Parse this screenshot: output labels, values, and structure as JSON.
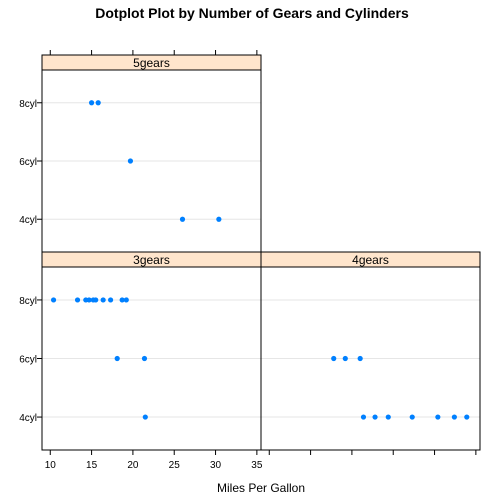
{
  "chart_data": {
    "type": "scatter",
    "title": "Dotplot Plot by Number of Gears and Cylinders",
    "xlabel": "Miles Per Gallon",
    "ylabel": "",
    "xlim": [
      9,
      35.5
    ],
    "x_ticks": [
      10,
      15,
      20,
      25,
      30,
      35
    ],
    "categories": [
      "4cyl",
      "6cyl",
      "8cyl"
    ],
    "point_color": "#0080ff",
    "strip_color": "#ffe5cc",
    "panels": [
      {
        "name": "5gears",
        "points": [
          {
            "cyl": "8cyl",
            "mpg": 15.0
          },
          {
            "cyl": "8cyl",
            "mpg": 15.8
          },
          {
            "cyl": "6cyl",
            "mpg": 19.7
          },
          {
            "cyl": "4cyl",
            "mpg": 26.0
          },
          {
            "cyl": "4cyl",
            "mpg": 30.4
          }
        ]
      },
      {
        "name": "3gears",
        "points": [
          {
            "cyl": "8cyl",
            "mpg": 10.4
          },
          {
            "cyl": "8cyl",
            "mpg": 13.3
          },
          {
            "cyl": "8cyl",
            "mpg": 14.3
          },
          {
            "cyl": "8cyl",
            "mpg": 14.7
          },
          {
            "cyl": "8cyl",
            "mpg": 15.2
          },
          {
            "cyl": "8cyl",
            "mpg": 15.5
          },
          {
            "cyl": "8cyl",
            "mpg": 16.4
          },
          {
            "cyl": "8cyl",
            "mpg": 17.3
          },
          {
            "cyl": "8cyl",
            "mpg": 18.7
          },
          {
            "cyl": "8cyl",
            "mpg": 19.2
          },
          {
            "cyl": "6cyl",
            "mpg": 18.1
          },
          {
            "cyl": "6cyl",
            "mpg": 21.4
          },
          {
            "cyl": "4cyl",
            "mpg": 21.5
          }
        ]
      },
      {
        "name": "4gears",
        "points": [
          {
            "cyl": "6cyl",
            "mpg": 17.8
          },
          {
            "cyl": "6cyl",
            "mpg": 19.2
          },
          {
            "cyl": "6cyl",
            "mpg": 21.0
          },
          {
            "cyl": "4cyl",
            "mpg": 21.4
          },
          {
            "cyl": "4cyl",
            "mpg": 22.8
          },
          {
            "cyl": "4cyl",
            "mpg": 24.4
          },
          {
            "cyl": "4cyl",
            "mpg": 27.3
          },
          {
            "cyl": "4cyl",
            "mpg": 30.4
          },
          {
            "cyl": "4cyl",
            "mpg": 32.4
          },
          {
            "cyl": "4cyl",
            "mpg": 33.9
          }
        ]
      }
    ]
  }
}
